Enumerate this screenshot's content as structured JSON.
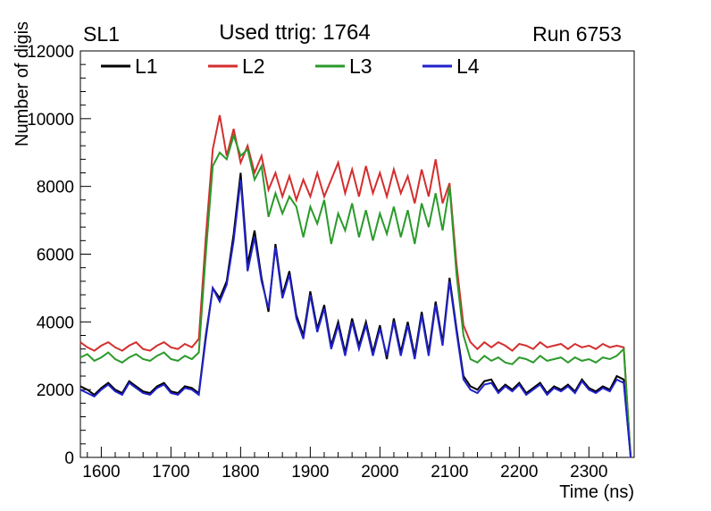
{
  "header": {
    "left": "SL1",
    "right": "Run 6753"
  },
  "chart_data": {
    "type": "line",
    "title": "Used ttrig: 1764",
    "xlabel": "Time (ns)",
    "ylabel": "Number of digis",
    "xlim": [
      1570,
      2365
    ],
    "ylim": [
      0,
      12000
    ],
    "xticks": [
      1600,
      1700,
      1800,
      1900,
      2000,
      2100,
      2200,
      2300
    ],
    "yticks": [
      0,
      2000,
      4000,
      6000,
      8000,
      10000,
      12000
    ],
    "x_minor_step": 20,
    "y_minor_step": 400,
    "grid": false,
    "legend_position": "top-inside",
    "x": [
      1570,
      1580,
      1590,
      1600,
      1610,
      1620,
      1630,
      1640,
      1650,
      1660,
      1670,
      1680,
      1690,
      1700,
      1710,
      1720,
      1730,
      1740,
      1750,
      1760,
      1770,
      1780,
      1790,
      1800,
      1810,
      1820,
      1830,
      1840,
      1850,
      1860,
      1870,
      1880,
      1890,
      1900,
      1910,
      1920,
      1930,
      1940,
      1950,
      1960,
      1970,
      1980,
      1990,
      2000,
      2010,
      2020,
      2030,
      2040,
      2050,
      2060,
      2070,
      2080,
      2090,
      2100,
      2110,
      2120,
      2130,
      2140,
      2150,
      2160,
      2170,
      2180,
      2190,
      2200,
      2210,
      2220,
      2230,
      2240,
      2250,
      2260,
      2270,
      2280,
      2290,
      2300,
      2310,
      2320,
      2330,
      2340,
      2350,
      2360
    ],
    "series": [
      {
        "name": "L1",
        "color": "#000000",
        "values": [
          2100,
          2000,
          1850,
          2050,
          2200,
          2000,
          1900,
          2250,
          2100,
          1950,
          1900,
          2100,
          2200,
          1950,
          1900,
          2100,
          2050,
          1900,
          3600,
          5000,
          4700,
          5200,
          6600,
          8400,
          5700,
          6700,
          5300,
          4300,
          6300,
          4800,
          5500,
          4200,
          3600,
          4900,
          3800,
          4500,
          3300,
          4000,
          3100,
          4100,
          3300,
          4000,
          3100,
          3900,
          2900,
          4100,
          3100,
          4000,
          3000,
          4300,
          3100,
          4600,
          3400,
          5300,
          3800,
          2400,
          2100,
          2000,
          2250,
          2300,
          1950,
          2150,
          2000,
          2200,
          1900,
          2050,
          2200,
          1900,
          2100,
          2000,
          2150,
          1950,
          2300,
          2050,
          1950,
          2100,
          2000,
          2400,
          2300,
          0
        ]
      },
      {
        "name": "L2",
        "color": "#d42e2e",
        "values": [
          3400,
          3250,
          3150,
          3300,
          3400,
          3250,
          3150,
          3300,
          3400,
          3200,
          3150,
          3300,
          3400,
          3250,
          3200,
          3350,
          3250,
          3500,
          6500,
          9100,
          10100,
          8900,
          9700,
          8700,
          9200,
          8400,
          8900,
          7900,
          8400,
          7700,
          8300,
          7600,
          8200,
          7700,
          8400,
          7700,
          8200,
          8700,
          7800,
          8500,
          7700,
          8600,
          7800,
          8400,
          7700,
          8500,
          7800,
          8300,
          7500,
          8500,
          7700,
          8800,
          7500,
          8100,
          5700,
          3900,
          3400,
          3200,
          3400,
          3250,
          3400,
          3300,
          3150,
          3350,
          3300,
          3200,
          3400,
          3250,
          3300,
          3350,
          3200,
          3350,
          3250,
          3300,
          3200,
          3350,
          3250,
          3300,
          3250,
          0
        ]
      },
      {
        "name": "L3",
        "color": "#2a9a2a",
        "values": [
          2950,
          3050,
          2850,
          2950,
          3100,
          2900,
          2800,
          2950,
          3050,
          2900,
          2850,
          3000,
          3100,
          2900,
          2850,
          3000,
          2900,
          3100,
          6000,
          8600,
          9000,
          8800,
          9500,
          8900,
          9100,
          8200,
          8600,
          7100,
          7800,
          7200,
          7700,
          7400,
          6500,
          7400,
          6900,
          7600,
          6300,
          7200,
          6700,
          7500,
          6500,
          7300,
          6400,
          7200,
          6600,
          7400,
          6500,
          7300,
          6300,
          7500,
          6800,
          7800,
          6700,
          8000,
          5400,
          3600,
          2900,
          2800,
          3000,
          2850,
          2950,
          2800,
          2750,
          2950,
          2900,
          2800,
          3000,
          2850,
          2900,
          2950,
          2800,
          2950,
          2850,
          2900,
          2800,
          2950,
          2900,
          3000,
          3200,
          0
        ]
      },
      {
        "name": "L4",
        "color": "#2121cc",
        "values": [
          2000,
          1900,
          1800,
          2000,
          2150,
          1950,
          1850,
          2200,
          2050,
          1900,
          1850,
          2050,
          2150,
          1900,
          1850,
          2050,
          2000,
          1850,
          3500,
          5000,
          4600,
          5100,
          6400,
          8200,
          5500,
          6500,
          5200,
          4400,
          6200,
          4700,
          5400,
          4100,
          3500,
          4800,
          3700,
          4400,
          3200,
          3900,
          3000,
          4000,
          3200,
          3900,
          3000,
          3800,
          3000,
          4000,
          3000,
          3900,
          2900,
          4200,
          3000,
          4500,
          3300,
          5200,
          3700,
          2300,
          2000,
          1900,
          2150,
          2200,
          1900,
          2100,
          1950,
          2150,
          1850,
          2000,
          2150,
          1850,
          2050,
          1950,
          2100,
          1900,
          2250,
          2000,
          1900,
          2050,
          1950,
          2300,
          2200,
          0
        ]
      }
    ]
  }
}
